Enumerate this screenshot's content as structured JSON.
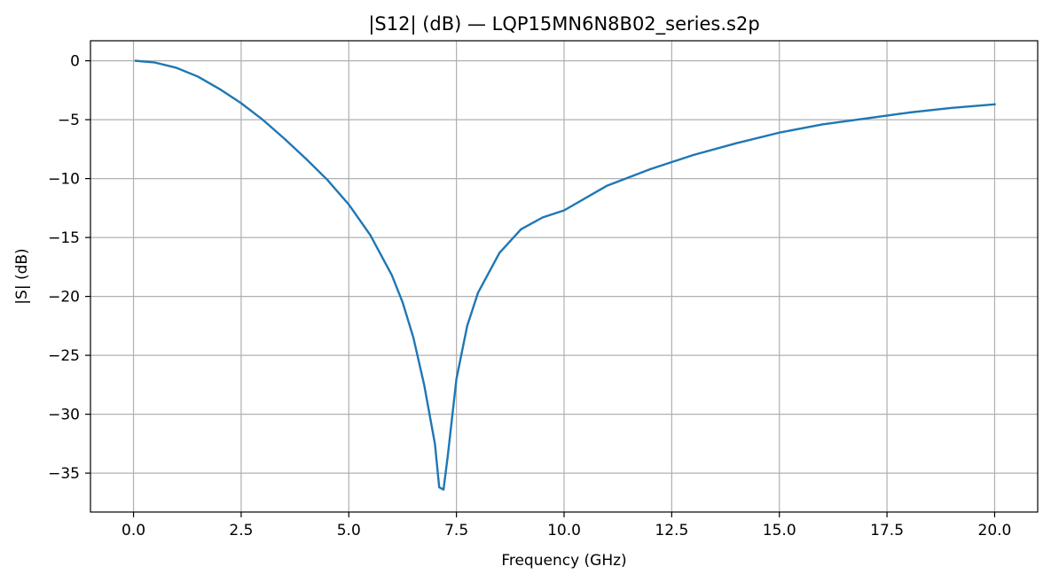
{
  "chart_data": {
    "type": "line",
    "title": "|S12| (dB) — LQP15MN6N8B02_series.s2p",
    "xlabel": "Frequency (GHz)",
    "ylabel": "|S| (dB)",
    "xlim": [
      -1.0,
      21.0
    ],
    "ylim": [
      -38.3,
      1.7
    ],
    "xticks": [
      0.0,
      2.5,
      5.0,
      7.5,
      10.0,
      12.5,
      15.0,
      17.5,
      20.0
    ],
    "xtick_labels": [
      "0.0",
      "2.5",
      "5.0",
      "7.5",
      "10.0",
      "12.5",
      "15.0",
      "17.5",
      "20.0"
    ],
    "yticks": [
      0,
      -5,
      -10,
      -15,
      -20,
      -25,
      -30,
      -35
    ],
    "ytick_labels": [
      "0",
      "−5",
      "−10",
      "−15",
      "−20",
      "−25",
      "−30",
      "−35"
    ],
    "grid": true,
    "line_color": "#1f77b4",
    "series": [
      {
        "x": [
          0.05,
          0.5,
          1.0,
          1.5,
          2.0,
          2.5,
          3.0,
          3.5,
          4.0,
          4.5,
          5.0,
          5.5,
          6.0,
          6.25,
          6.5,
          6.75,
          7.0,
          7.1,
          7.2,
          7.3,
          7.5,
          7.75,
          8.0,
          8.5,
          9.0,
          9.5,
          10.0,
          11.0,
          12.0,
          13.0,
          14.0,
          15.0,
          16.0,
          17.0,
          18.0,
          19.0,
          20.0
        ],
        "y": [
          0.0,
          -0.15,
          -0.6,
          -1.35,
          -2.4,
          -3.6,
          -5.0,
          -6.6,
          -8.3,
          -10.1,
          -12.2,
          -14.8,
          -18.2,
          -20.5,
          -23.5,
          -27.5,
          -32.5,
          -36.2,
          -36.4,
          -33.5,
          -27.0,
          -22.5,
          -19.7,
          -16.3,
          -14.3,
          -13.3,
          -12.7,
          -10.6,
          -9.2,
          -8.0,
          -7.0,
          -6.1,
          -5.4,
          -4.9,
          -4.4,
          -4.0,
          -3.7
        ]
      }
    ]
  }
}
